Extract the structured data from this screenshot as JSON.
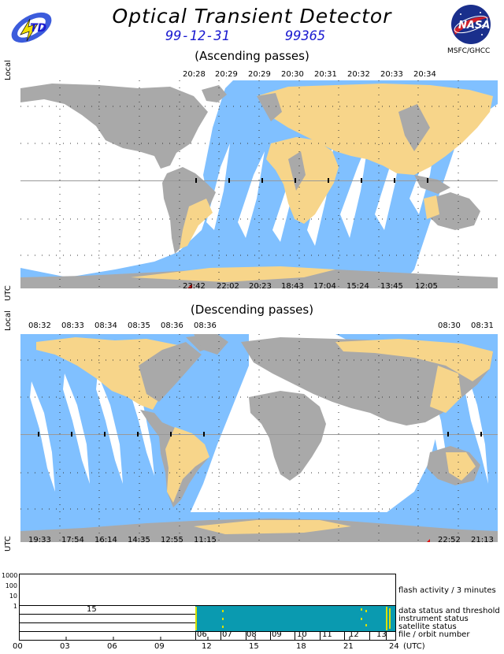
{
  "header": {
    "title": "Optical Transient Detector",
    "date": "99-12-31",
    "day_of_year": "99365",
    "org": "MSFC/GHCC"
  },
  "ascending": {
    "subtitle": "(Ascending passes)",
    "local_label": "Local",
    "utc_label": "UTC",
    "local_times": [
      "20:28",
      "20:29",
      "20:29",
      "20:30",
      "20:31",
      "20:32",
      "20:33",
      "20:34"
    ],
    "utc_times": [
      "23:42",
      "22:02",
      "20:23",
      "18:43",
      "17:04",
      "15:24",
      "13:45",
      "12:05"
    ]
  },
  "descending": {
    "subtitle": "(Descending passes)",
    "local_label": "Local",
    "utc_label": "UTC",
    "local_times": [
      "08:32",
      "08:33",
      "08:34",
      "08:35",
      "08:36",
      "08:36",
      "08:30",
      "08:31"
    ],
    "utc_times": [
      "19:33",
      "17:54",
      "16:14",
      "14:35",
      "12:55",
      "11:15",
      "22:52",
      "21:13"
    ]
  },
  "timeline": {
    "y_ticks": [
      "1000",
      "100",
      "10",
      "1"
    ],
    "flash_label": "flash activity / 3 minutes",
    "threshold_value": "15",
    "row_labels": [
      "data status and threshold",
      "instrument status",
      "satellite status",
      "file / orbit number"
    ],
    "orbit_numbers": [
      "06",
      "07",
      "08",
      "09",
      "10",
      "11",
      "12",
      "13"
    ],
    "x_ticks": [
      "00",
      "03",
      "06",
      "09",
      "12",
      "15",
      "18",
      "21",
      "24"
    ],
    "x_unit": "(UTC)",
    "colors": {
      "active": "#0a9ab0",
      "marker": "#d9e000"
    }
  },
  "colors": {
    "ocean": "#80c0ff",
    "land_grey": "#a9a9a9",
    "land_tan": "#f7d58a"
  }
}
